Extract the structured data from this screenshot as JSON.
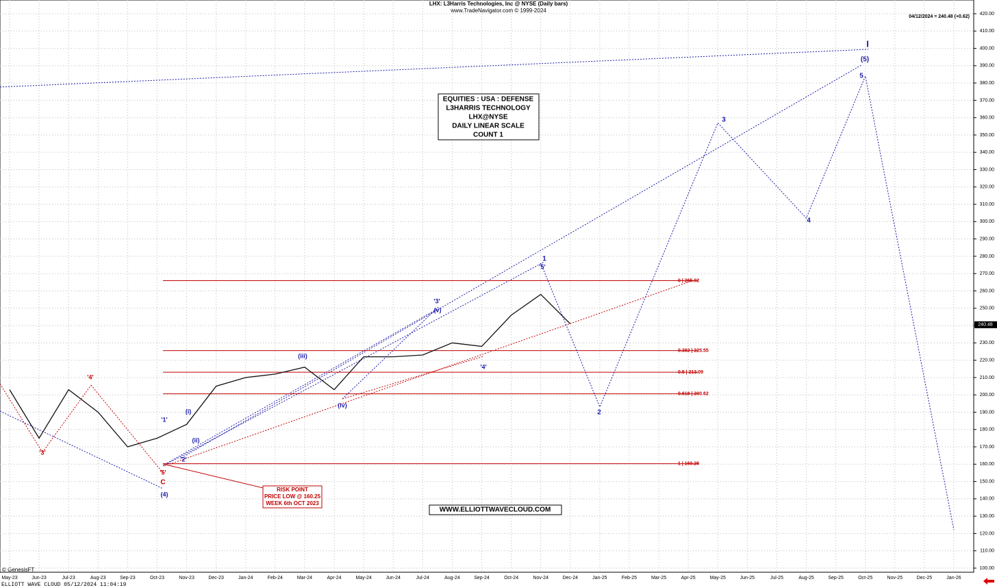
{
  "chart_data": {
    "type": "line",
    "title": "LHX:  L3Harris Technologies, Inc @ NYSE  (Daily bars)",
    "subtitle": "www.TradeNavigator.com © 1999-2024",
    "quote": "04/12/2024 = 240.48 (+0.62)",
    "last_price": 240.48,
    "categories": [
      "May-23",
      "Jun-23",
      "Jul-23",
      "Aug-23",
      "Sep-23",
      "Oct-23",
      "Nov-23",
      "Dec-23",
      "Jan-24",
      "Feb-24",
      "Mar-24",
      "Apr-24",
      "May-24",
      "Jun-24",
      "Jul-24",
      "Aug-24",
      "Sep-24",
      "Oct-24",
      "Nov-24",
      "Dec-24",
      "Jan-25",
      "Feb-25",
      "Mar-25",
      "Apr-25",
      "May-25",
      "Jun-25",
      "Jul-25",
      "Aug-25",
      "Sep-25",
      "Oct-25",
      "Nov-25",
      "Dec-25",
      "Jan-26"
    ],
    "ylim": [
      100,
      420
    ],
    "yticks": [
      {
        "value": 100,
        "label": "100.00"
      },
      {
        "value": 110,
        "label": "110.00"
      },
      {
        "value": 120,
        "label": "120.00"
      },
      {
        "value": 130,
        "label": "130.00"
      },
      {
        "value": 140,
        "label": "140.00"
      },
      {
        "value": 150,
        "label": "150.00"
      },
      {
        "value": 160,
        "label": "160.00"
      },
      {
        "value": 170,
        "label": "170.00"
      },
      {
        "value": 180,
        "label": "180.00"
      },
      {
        "value": 190,
        "label": "190.00"
      },
      {
        "value": 200,
        "label": "200.00"
      },
      {
        "value": 210,
        "label": "210.00"
      },
      {
        "value": 220,
        "label": "220.00"
      },
      {
        "value": 230,
        "label": "230.00"
      },
      {
        "value": 240,
        "label": "240.00"
      },
      {
        "value": 250,
        "label": "250.00"
      },
      {
        "value": 260,
        "label": "260.00"
      },
      {
        "value": 270,
        "label": "270.00"
      },
      {
        "value": 280,
        "label": "280.00"
      },
      {
        "value": 290,
        "label": "290.00"
      },
      {
        "value": 300,
        "label": "300.00"
      },
      {
        "value": 310,
        "label": "310.00"
      },
      {
        "value": 320,
        "label": "320.00"
      },
      {
        "value": 330,
        "label": "330.00"
      },
      {
        "value": 340,
        "label": "340.00"
      },
      {
        "value": 350,
        "label": "350.00"
      },
      {
        "value": 360,
        "label": "360.00"
      },
      {
        "value": 370,
        "label": "370.00"
      },
      {
        "value": 380,
        "label": "380.00"
      },
      {
        "value": 390,
        "label": "390.00"
      },
      {
        "value": 400,
        "label": "400.00"
      },
      {
        "value": 410,
        "label": "410.00"
      },
      {
        "value": 420,
        "label": "420.00"
      }
    ],
    "grid": true,
    "series": [
      {
        "color": "#111111",
        "x": [
          "May-23",
          "Jun-23",
          "Jul-23",
          "Aug-23",
          "Sep-23",
          "Oct-23",
          "Nov-23",
          "Dec-23",
          "Jan-24",
          "Feb-24",
          "Mar-24",
          "Apr-24",
          "May-24",
          "Jun-24",
          "Jul-24",
          "Aug-24",
          "Sep-24",
          "Oct-24",
          "Nov-24",
          "Dec-24"
        ],
        "values": [
          203,
          175,
          203,
          190,
          170,
          175,
          183,
          205,
          210,
          212,
          216,
          203,
          222,
          222,
          223,
          230,
          228,
          246,
          258,
          241
        ]
      },
      {
        "color": "#1a1aa8",
        "x": [
          "Nov-24",
          "Jan-25",
          "May-25",
          "Aug-25",
          "Oct-25",
          "Jan-26"
        ],
        "values": [
          276,
          193,
          357,
          302,
          384,
          122
        ]
      }
    ],
    "levels": [
      {
        "label": "0 | 265.92",
        "value": 265.92
      },
      {
        "label": "0.382 | 225.55",
        "value": 225.55
      },
      {
        "label": "0.5 | 213.09",
        "value": 213.09
      },
      {
        "label": "0.618 | 200.62",
        "value": 200.62
      },
      {
        "label": "1 | 160.25",
        "value": 160.25
      }
    ],
    "wave_labels": [
      "'3'",
      "'4'",
      "'5'",
      "C",
      "(4)",
      "'1'",
      "(i)",
      "(ii)",
      "'2'",
      "(iii)",
      "(iv)",
      "'3'",
      "(v)",
      "'4'",
      "'5'",
      "1",
      "2",
      "3",
      "4",
      "5",
      "(5)",
      "I"
    ],
    "info_box": [
      "EQUITIES : USA : DEFENSE",
      "L3HARRIS TECHNOLOGY",
      "LHX@NYSE",
      "DAILY LINEAR SCALE",
      "COUNT 1"
    ],
    "risk_box": [
      "RISK POINT",
      "PRICE LOW @ 160.25",
      "WEEK 6th OCT 2023"
    ],
    "website": "WWW.ELLIOTTWAVECLOUD.COM",
    "copyright": "© GenesisFT",
    "footer": "ELLIOTT WAVE CLOUD   05/12/2024 11:04:19"
  }
}
